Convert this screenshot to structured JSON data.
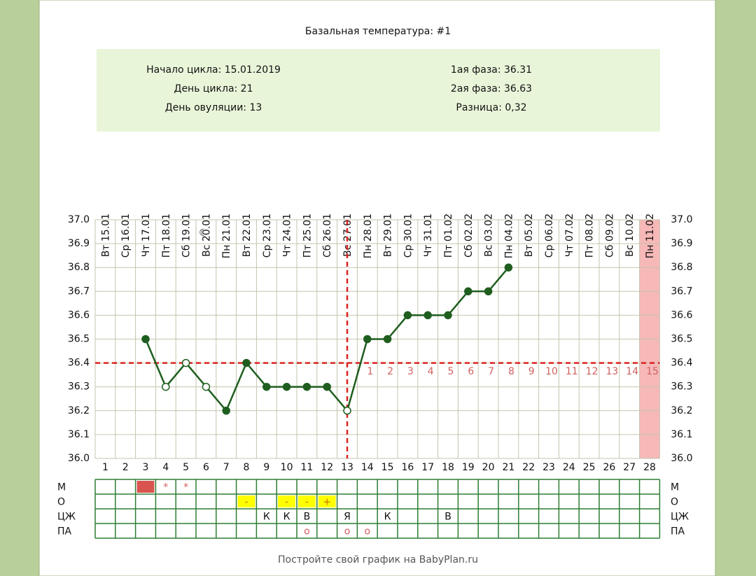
{
  "chart_data": {
    "type": "line",
    "title": "Базальная температура: #1",
    "info_left": [
      "Начало цикла: 15.01.2019",
      "День цикла: 21",
      "День овуляции: 13"
    ],
    "info_right": [
      "1ая фаза: 36.31",
      "2ая фаза: 36.63",
      "Разница: 0,32"
    ],
    "x": [
      1,
      2,
      3,
      4,
      5,
      6,
      7,
      8,
      9,
      10,
      11,
      12,
      13,
      14,
      15,
      16,
      17,
      18,
      19,
      20,
      21,
      22,
      23,
      24,
      25,
      26,
      27,
      28
    ],
    "dates": [
      "Вт 15.01",
      "Ср 16.01",
      "Чт 17.01",
      "Пт 18.01",
      "Сб 19.01",
      "Вс 20.01",
      "Пн 21.01",
      "Вт 22.01",
      "Ср 23.01",
      "Чт 24.01",
      "Пт 25.01",
      "Сб 26.01",
      "Вс 27.01",
      "Пн 28.01",
      "Вт 29.01",
      "Ср 30.01",
      "Чт 31.01",
      "Пт 01.02",
      "Сб 02.02",
      "Вс 03.02",
      "Пн 04.02",
      "Вт 05.02",
      "Ср 06.02",
      "Чт 07.02",
      "Пт 08.02",
      "Сб 09.02",
      "Вс 10.02",
      "Пн 11.02"
    ],
    "values": [
      null,
      null,
      36.5,
      36.3,
      36.4,
      36.3,
      36.2,
      36.4,
      36.3,
      36.3,
      36.3,
      36.3,
      36.2,
      36.5,
      36.5,
      36.6,
      36.6,
      36.6,
      36.7,
      36.7,
      36.8,
      null,
      null,
      null,
      null,
      null,
      null,
      null
    ],
    "hollow_x": [
      4,
      5,
      6,
      13
    ],
    "color": "#1f5e1f",
    "coverline": 36.4,
    "ovulation_x": 13,
    "line_color": "#dd2222",
    "phase_numbers": [
      null,
      null,
      null,
      null,
      null,
      null,
      null,
      null,
      null,
      null,
      null,
      null,
      null,
      1,
      2,
      3,
      4,
      5,
      6,
      7,
      8,
      9,
      10,
      11,
      12,
      13,
      14,
      15
    ],
    "highlight_x": [
      28
    ],
    "moon_x": 6,
    "ylim": [
      36.0,
      37.0
    ],
    "yticks": [
      {
        "value": 36.0,
        "label": "36.0"
      },
      36.1,
      36.2,
      36.3,
      36.4,
      36.5,
      36.6,
      36.7,
      36.8,
      36.9,
      {
        "value": 37.0,
        "label": "37.0"
      }
    ],
    "grid": true,
    "table": [
      {
        "label": "М",
        "cells": [
          {
            "x": 3,
            "fill": "#d9534f"
          },
          {
            "x": 4,
            "text": "*"
          },
          {
            "x": 5,
            "text": "*"
          }
        ]
      },
      {
        "label": "О",
        "cells": [
          {
            "x": 8,
            "text": "-",
            "fill": "#ffff00"
          },
          {
            "x": 10,
            "text": "-",
            "fill": "#ffff00"
          },
          {
            "x": 11,
            "text": "-",
            "fill": "#ffff00"
          },
          {
            "x": 12,
            "text": "+",
            "fill": "#ffff00"
          }
        ]
      },
      {
        "label": "ЦЖ",
        "cells": [
          {
            "x": 9,
            "text": "К"
          },
          {
            "x": 10,
            "text": "К"
          },
          {
            "x": 11,
            "text": "В"
          },
          {
            "x": 13,
            "text": "Я"
          },
          {
            "x": 15,
            "text": "К"
          },
          {
            "x": 18,
            "text": "В"
          }
        ]
      },
      {
        "label": "ПА",
        "cells": [
          {
            "x": 11,
            "text": "o"
          },
          {
            "x": 13,
            "text": "o"
          },
          {
            "x": 14,
            "text": "o"
          }
        ]
      }
    ],
    "footer": "Постройте свой график на BabyPlan.ru"
  }
}
